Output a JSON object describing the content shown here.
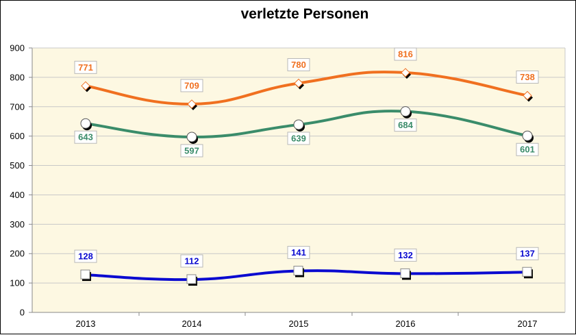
{
  "chart_data": {
    "type": "line",
    "title": "verletzte Personen",
    "xlabel": "",
    "ylabel": "",
    "categories": [
      "2013",
      "2014",
      "2015",
      "2016",
      "2017"
    ],
    "ylim": [
      0,
      900
    ],
    "yticks": [
      0,
      100,
      200,
      300,
      400,
      500,
      600,
      700,
      800,
      900
    ],
    "grid": true,
    "legend": "none",
    "series": [
      {
        "name": "orange",
        "color": "#f07020",
        "marker": "diamond",
        "label_position": "above",
        "values": [
          771,
          709,
          780,
          816,
          738
        ]
      },
      {
        "name": "green",
        "color": "#3a8c6a",
        "marker": "circle",
        "label_position": "below",
        "values": [
          643,
          597,
          639,
          684,
          601
        ]
      },
      {
        "name": "blue",
        "color": "#0a0ad0",
        "marker": "square",
        "label_position": "above",
        "values": [
          128,
          112,
          141,
          132,
          137
        ]
      }
    ]
  },
  "colors": {
    "plot_background": "#fdf8e2",
    "gridline": "#c8c8c8",
    "axis": "#888888"
  }
}
